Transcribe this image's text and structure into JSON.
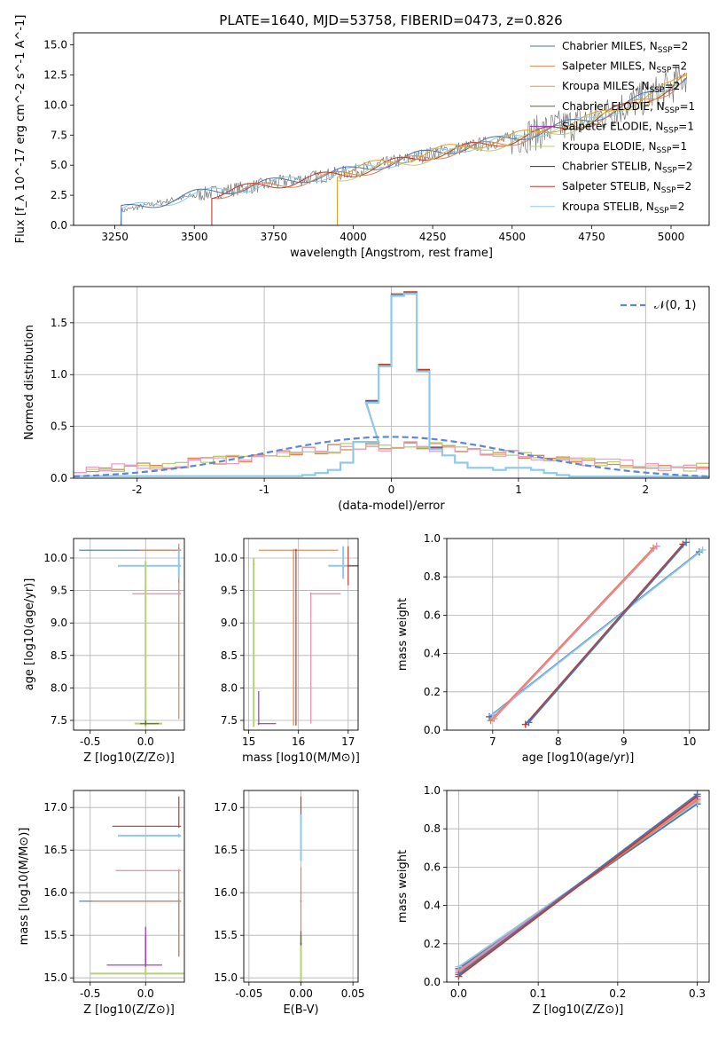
{
  "figure": {
    "title": "PLATE=1640, MJD=53758, FIBERID=0473, z=0.826"
  },
  "series_styles": [
    {
      "name": "Chabrier MILES",
      "nssp": "2",
      "color": "#4c72b0"
    },
    {
      "name": "Salpeter MILES",
      "nssp": "2",
      "color": "#dd8452"
    },
    {
      "name": "Kroupa MILES",
      "nssp": "2",
      "color": "#e0a020"
    },
    {
      "name": "Chabrier ELODIE",
      "nssp": "1",
      "color": "#556b2f"
    },
    {
      "name": "Salpeter ELODIE",
      "nssp": "1",
      "color": "#9932cc"
    },
    {
      "name": "Kroupa ELODIE",
      "nssp": "1",
      "color": "#b8d070"
    },
    {
      "name": "Chabrier STELIB",
      "nssp": "2",
      "color": "#333333"
    },
    {
      "name": "Salpeter STELIB",
      "nssp": "2",
      "color": "#c0392b"
    },
    {
      "name": "Kroupa STELIB",
      "nssp": "2",
      "color": "#8ecae6"
    }
  ],
  "chart_data": [
    {
      "id": "spectrum",
      "type": "line",
      "xlabel": "wavelength [Angstrom, rest frame]",
      "ylabel": "Flux [f_λ 10^-17 erg cm^-2 s^-1 A^-1]",
      "xlim": [
        3120,
        5120
      ],
      "ylim": [
        0,
        16
      ],
      "xticks": [
        3250,
        3500,
        3750,
        4000,
        4250,
        4500,
        4750,
        5000
      ],
      "yticks": [
        0.0,
        2.5,
        5.0,
        7.5,
        10.0,
        12.5,
        15.0
      ],
      "grid": false,
      "legend": "top-right",
      "data_trend": {
        "x": [
          3270,
          3500,
          3750,
          4000,
          4250,
          4500,
          4750,
          5000,
          5050
        ],
        "y": [
          1.2,
          2.5,
          3.5,
          4.5,
          6.0,
          7.2,
          8.8,
          11.5,
          12.5
        ]
      },
      "model_starts": [
        3270,
        3555,
        3950
      ]
    },
    {
      "id": "residuals",
      "type": "line",
      "xlabel": "(data-model)/error",
      "ylabel": "Normed distribution",
      "xlim": [
        -2.5,
        2.5
      ],
      "ylim": [
        0,
        1.85
      ],
      "xticks": [
        -2,
        -1,
        0,
        1,
        2
      ],
      "yticks": [
        0.0,
        0.5,
        1.0,
        1.5
      ],
      "grid": true,
      "legend": "top-right",
      "legend_label": "𝒩(0, 1)",
      "gaussian": {
        "mu": 0,
        "sigma": 1
      },
      "bins": [
        -0.2,
        -0.1,
        0.0,
        0.1,
        0.2,
        0.3
      ],
      "values": [
        0.75,
        1.1,
        1.78,
        1.8,
        1.05,
        0.3
      ]
    },
    {
      "id": "age-vs-z",
      "type": "scatter",
      "xlabel": "Z [log10(Z/Z⊙)]",
      "ylabel": "age [log10(age/yr)]",
      "xlim": [
        -0.65,
        0.35
      ],
      "ylim": [
        7.35,
        10.3
      ],
      "xticks": [
        -0.5,
        0.0
      ],
      "yticks": [
        7.5,
        8.0,
        8.5,
        9.0,
        9.5,
        10.0
      ],
      "grid": true
    },
    {
      "id": "age-vs-mass",
      "type": "scatter",
      "xlabel": "mass [log10(M/M⊙)]",
      "ylabel": "",
      "xlim": [
        14.9,
        17.2
      ],
      "ylim": [
        7.35,
        10.3
      ],
      "xticks": [
        15,
        16,
        17
      ],
      "yticks": [
        7.5,
        8.0,
        8.5,
        9.0,
        9.5,
        10.0
      ],
      "grid": true
    },
    {
      "id": "weight-vs-age",
      "type": "line",
      "xlabel": "age [log10(age/yr)]",
      "ylabel": "mass weight",
      "xlim": [
        6.3,
        10.3
      ],
      "ylim": [
        0,
        1
      ],
      "xticks": [
        7,
        8,
        9,
        10
      ],
      "yticks": [
        0.0,
        0.2,
        0.4,
        0.6,
        0.8,
        1.0
      ],
      "grid": true,
      "lines": [
        {
          "x": [
            6.95,
            10.15
          ],
          "y": [
            0.07,
            0.93
          ]
        },
        {
          "x": [
            6.97,
            9.45
          ],
          "y": [
            0.05,
            0.95
          ]
        },
        {
          "x": [
            7.5,
            9.9
          ],
          "y": [
            0.03,
            0.97
          ]
        }
      ]
    },
    {
      "id": "mass-vs-z",
      "type": "scatter",
      "xlabel": "Z [log10(Z/Z⊙)]",
      "ylabel": "mass [log10(M/M⊙)]",
      "xlim": [
        -0.65,
        0.35
      ],
      "ylim": [
        14.95,
        17.2
      ],
      "xticks": [
        -0.5,
        0.0
      ],
      "yticks": [
        15.0,
        15.5,
        16.0,
        16.5,
        17.0
      ],
      "grid": true
    },
    {
      "id": "mass-vs-ebv",
      "type": "scatter",
      "xlabel": "E(B-V)",
      "ylabel": "",
      "xlim": [
        -0.055,
        0.055
      ],
      "ylim": [
        14.95,
        17.2
      ],
      "xticks": [
        -0.05,
        0.0,
        0.05
      ],
      "yticks": [
        15.0,
        15.5,
        16.0,
        16.5,
        17.0
      ],
      "grid": true
    },
    {
      "id": "weight-vs-z",
      "type": "line",
      "xlabel": "Z [log10(Z/Z⊙)]",
      "ylabel": "mass weight",
      "xlim": [
        -0.015,
        0.315
      ],
      "ylim": [
        0,
        1
      ],
      "xticks": [
        0.0,
        0.1,
        0.2,
        0.3
      ],
      "yticks": [
        0.0,
        0.2,
        0.4,
        0.6,
        0.8,
        1.0
      ],
      "grid": true,
      "lines": [
        {
          "x": [
            0.0,
            0.3
          ],
          "y": [
            0.07,
            0.93
          ]
        },
        {
          "x": [
            0.0,
            0.3
          ],
          "y": [
            0.05,
            0.95
          ]
        },
        {
          "x": [
            0.0,
            0.3
          ],
          "y": [
            0.03,
            0.97
          ]
        }
      ]
    }
  ]
}
